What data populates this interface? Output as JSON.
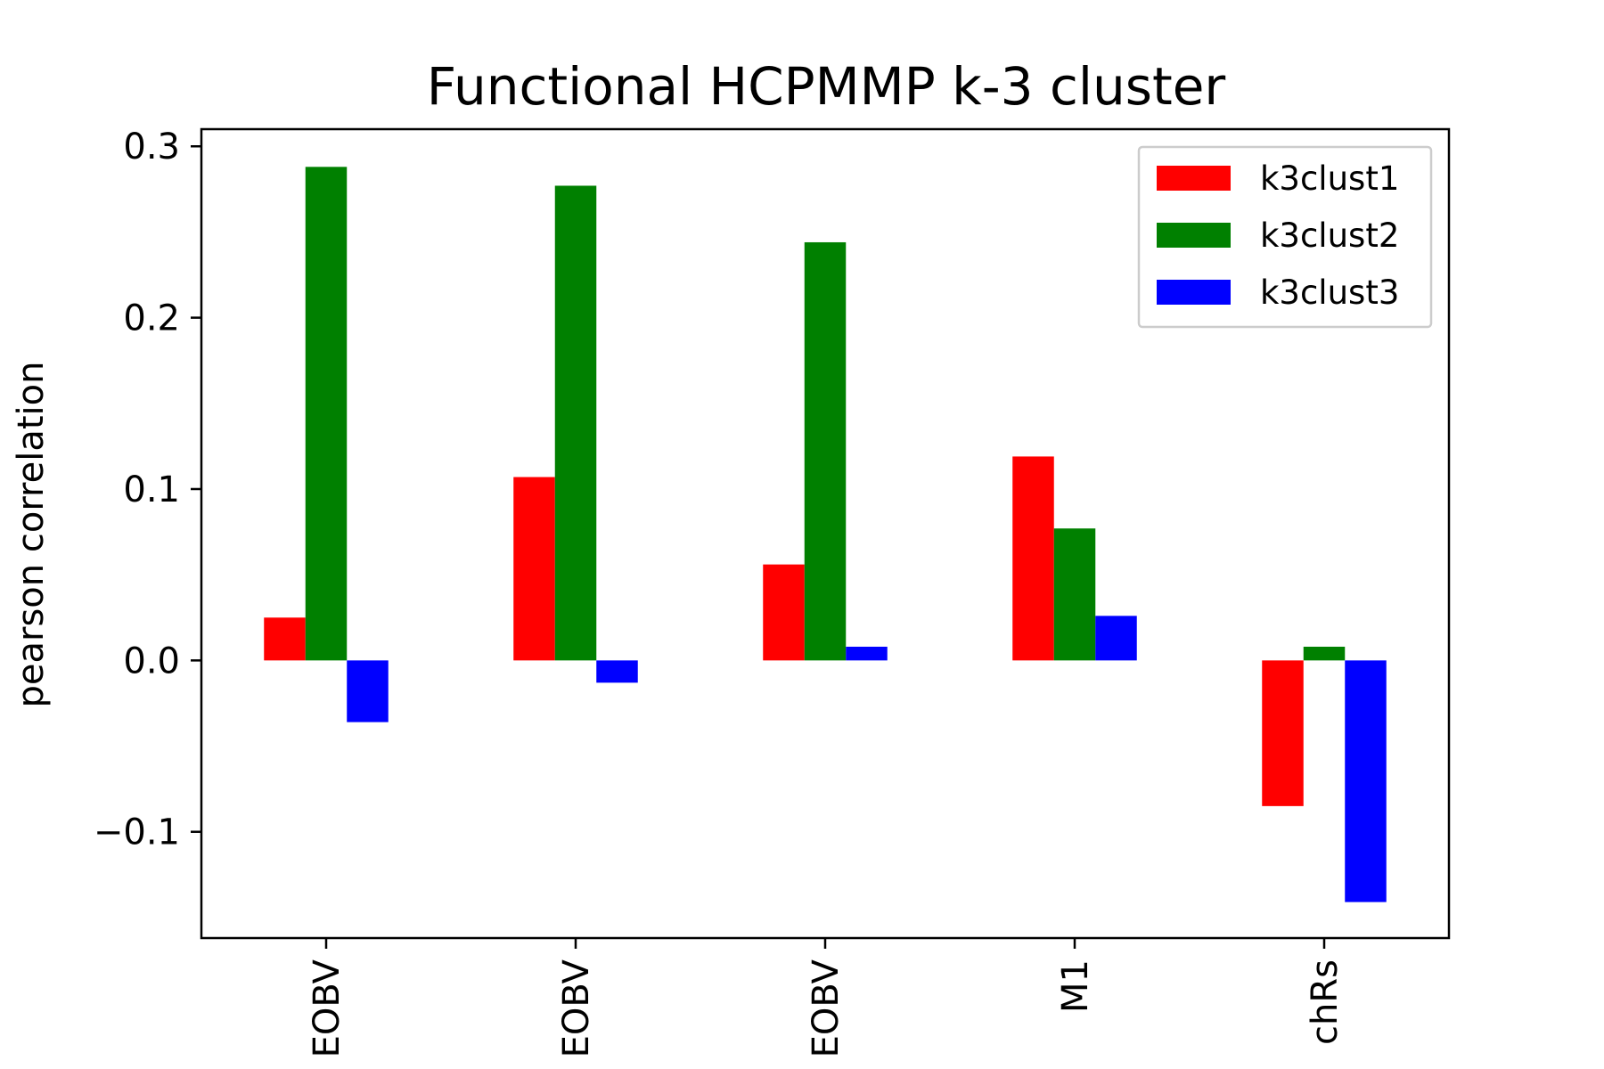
{
  "chart_data": {
    "type": "bar",
    "title": "Functional HCPMMP k-3 cluster",
    "xlabel": "",
    "ylabel": "pearson correlation",
    "categories": [
      "EOBV",
      "EOBV",
      "EOBV",
      "M1",
      "chRs"
    ],
    "series": [
      {
        "name": "k3clust1",
        "color": "#ff0000",
        "values": [
          0.025,
          0.107,
          0.056,
          0.119,
          -0.085
        ]
      },
      {
        "name": "k3clust2",
        "color": "#008000",
        "values": [
          0.288,
          0.277,
          0.244,
          0.077,
          0.008
        ]
      },
      {
        "name": "k3clust3",
        "color": "#0000ff",
        "values": [
          -0.036,
          -0.013,
          0.008,
          0.026,
          -0.141
        ]
      }
    ],
    "ylim": [
      -0.162,
      0.31
    ],
    "yticks": [
      -0.1,
      0.0,
      0.1,
      0.2,
      0.3
    ],
    "ytick_labels": [
      "−0.1",
      "0.0",
      "0.1",
      "0.2",
      "0.3"
    ],
    "grid": false,
    "legend_position": "top-right"
  }
}
